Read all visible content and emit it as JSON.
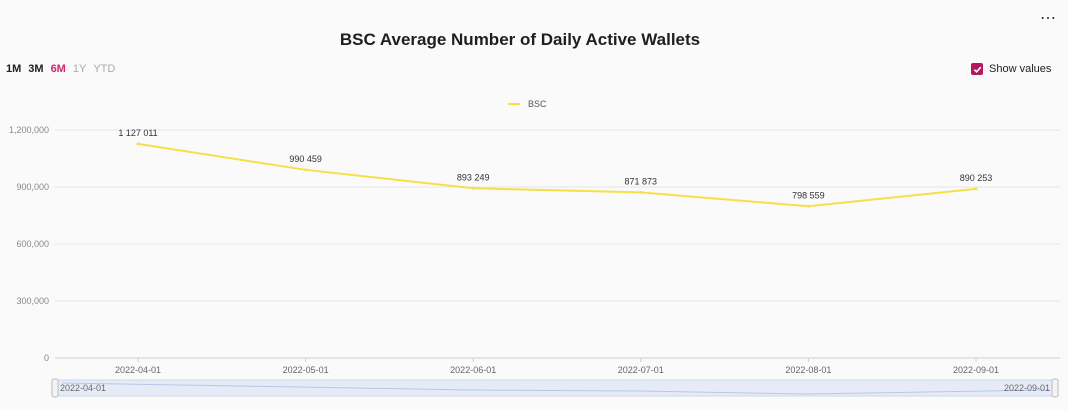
{
  "header": {
    "title": "BSC Average Number of Daily Active Wallets",
    "menu_icon": "more-dots-icon"
  },
  "ranges": [
    {
      "label": "1M",
      "state": "dark"
    },
    {
      "label": "3M",
      "state": "dark"
    },
    {
      "label": "6M",
      "state": "active"
    },
    {
      "label": "1Y",
      "state": "muted"
    },
    {
      "label": "YTD",
      "state": "muted"
    }
  ],
  "show_values": {
    "label": "Show values",
    "checked": true,
    "color": "#b5185f"
  },
  "slider": {
    "start_label": "2022-04-01",
    "end_label": "2022-09-01"
  },
  "chart_data": {
    "type": "line",
    "title": "BSC Average Number of Daily Active Wallets",
    "x": [
      "2022-04-01",
      "2022-05-01",
      "2022-06-01",
      "2022-07-01",
      "2022-08-01",
      "2022-09-01"
    ],
    "series": [
      {
        "name": "BSC",
        "color": "#f5e04a",
        "values": [
          1127011,
          990459,
          893249,
          871873,
          798559,
          890253
        ],
        "value_labels": [
          "1 127 011",
          "990 459",
          "893 249",
          "871 873",
          "798 559",
          "890 253"
        ]
      }
    ],
    "y_ticks": [
      0,
      300000,
      600000,
      900000,
      1200000
    ],
    "y_tick_labels": [
      "0",
      "300,000",
      "600,000",
      "900,000",
      "1,200,000"
    ],
    "ylim": [
      0,
      1200000
    ],
    "grid": true,
    "legend": "top-center",
    "xlabel": "",
    "ylabel": ""
  }
}
